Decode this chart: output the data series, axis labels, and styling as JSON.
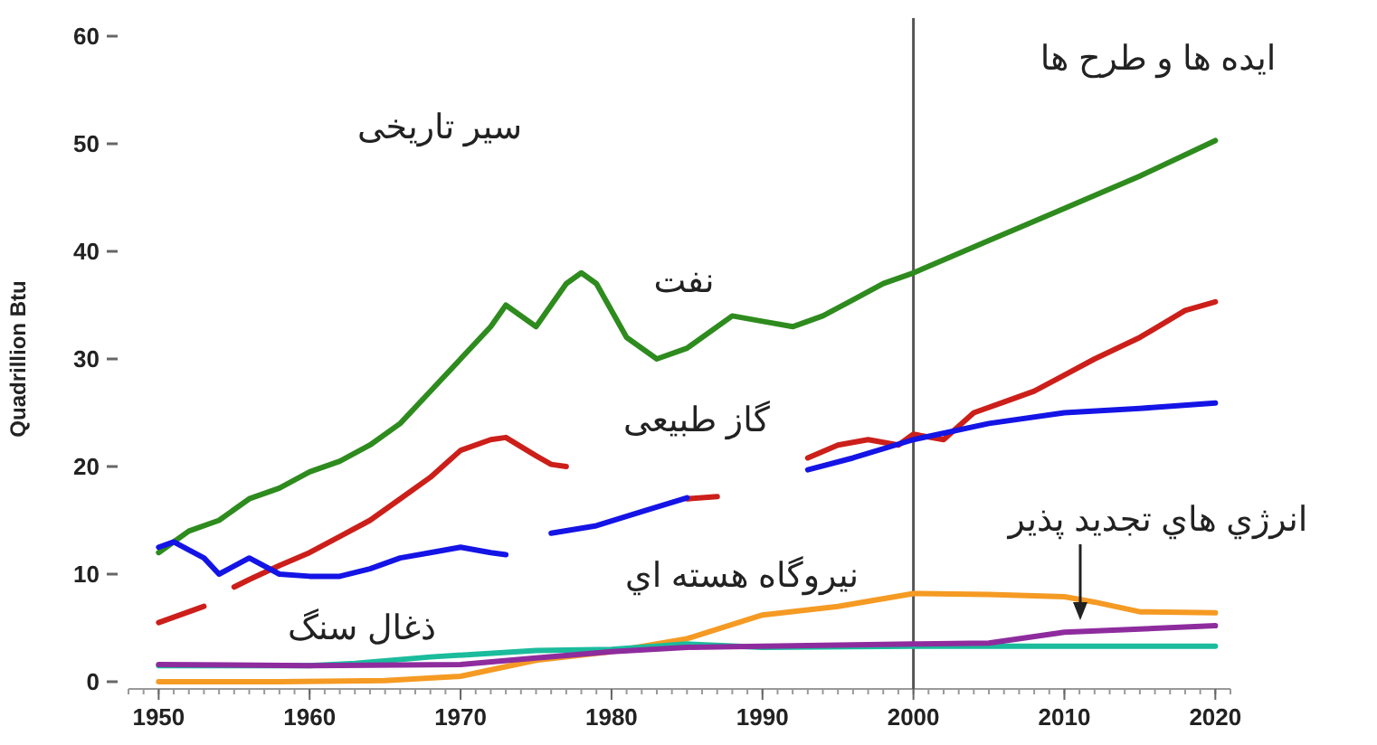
{
  "chart_data": {
    "type": "line",
    "ylabel": "Quadrillion Btu",
    "xlim": [
      1948,
      2021
    ],
    "xticks": [
      1950,
      1960,
      1970,
      1980,
      1990,
      2000,
      2010,
      2020
    ],
    "ylim": [
      0,
      60
    ],
    "yticks": [
      0,
      10,
      20,
      30,
      40,
      50,
      60
    ],
    "grid": false,
    "marker": "none",
    "line_style": "solid",
    "series": [
      {
        "color": "#2e8b1e",
        "x": [
          1950,
          1952,
          1954,
          1956,
          1958,
          1960,
          1962,
          1964,
          1966,
          1968,
          1970,
          1972,
          1973,
          1975,
          1977,
          1978,
          1979,
          1981,
          1983,
          1985,
          1988,
          1990,
          1992,
          1994,
          1996,
          1998,
          2000,
          2005,
          2010,
          2015,
          2020
        ],
        "values": [
          12,
          14,
          15,
          17,
          18,
          19.5,
          20.5,
          22,
          24,
          27,
          30,
          33,
          35,
          33,
          37,
          38,
          37,
          32,
          30,
          31,
          34,
          33.5,
          33,
          34,
          35.5,
          37,
          38,
          41,
          44,
          47,
          50.3
        ]
      },
      {
        "color": "#cc1f1a",
        "x": [
          1950,
          1952,
          1953,
          1954,
          1955,
          1956,
          1958,
          1960,
          1962,
          1964,
          1966,
          1968,
          1970,
          1972,
          1973,
          1975,
          1976,
          1977,
          1979,
          1985,
          1987,
          1990,
          1993,
          1995,
          1997,
          1999,
          2000,
          2002,
          2004,
          2006,
          2008,
          2010,
          2012,
          2015,
          2018,
          2020
        ],
        "values": [
          5.5,
          6.5,
          7,
          null,
          8.8,
          9.5,
          10.8,
          12,
          13.5,
          15,
          17,
          19,
          21.5,
          22.5,
          22.7,
          21,
          20.2,
          20,
          null,
          17,
          17.2,
          null,
          20.8,
          22,
          22.5,
          22,
          23,
          22.5,
          25,
          26,
          27,
          28.5,
          30,
          32,
          34.5,
          35.3
        ]
      },
      {
        "color": "#1414e6",
        "x": [
          1950,
          1951,
          1953,
          1954,
          1956,
          1958,
          1960,
          1962,
          1964,
          1966,
          1968,
          1970,
          1972,
          1973,
          1975,
          1976,
          1979,
          1982,
          1985,
          1988,
          1993,
          1996,
          2000,
          2005,
          2010,
          2015,
          2020
        ],
        "values": [
          12.5,
          13,
          11.5,
          10,
          11.5,
          10,
          9.8,
          9.8,
          10.5,
          11.5,
          12,
          12.5,
          12,
          11.8,
          null,
          13.8,
          14.5,
          15.8,
          17.1,
          null,
          19.7,
          20.8,
          22.5,
          24,
          25,
          25.4,
          25.9
        ]
      },
      {
        "color": "#f59a23",
        "x": [
          1950,
          1958,
          1965,
          1970,
          1975,
          1980,
          1985,
          1990,
          1995,
          2000,
          2005,
          2010,
          2012,
          2015,
          2020
        ],
        "values": [
          0,
          0,
          0.1,
          0.5,
          2,
          2.8,
          4,
          6.2,
          7,
          8.2,
          8.1,
          7.9,
          7.4,
          6.5,
          6.4
        ]
      },
      {
        "color": "#1abc9c",
        "x": [
          1950,
          1960,
          1963,
          1968,
          1975,
          1980,
          1985,
          1990,
          2000,
          2010,
          2020
        ],
        "values": [
          1.5,
          1.5,
          1.7,
          2.3,
          2.9,
          3,
          3.5,
          3.2,
          3.3,
          3.3,
          3.3
        ]
      },
      {
        "color": "#8e2c9e",
        "x": [
          1950,
          1960,
          1970,
          1975,
          1980,
          1985,
          1990,
          1995,
          2000,
          2005,
          2010,
          2015,
          2020
        ],
        "values": [
          1.6,
          1.5,
          1.6,
          2.2,
          2.8,
          3.2,
          3.3,
          3.4,
          3.5,
          3.6,
          4.6,
          4.9,
          5.2
        ]
      }
    ],
    "ref_lines": [
      {
        "axis": "x",
        "value": 2000,
        "color": "#555555"
      }
    ],
    "annotations": [
      "سیر تاریخی",
      "ایده ها و طرح ها",
      "نفت",
      "گاز طبیعی",
      "نیروگاه هسته اي",
      "ذغال سنگ",
      "انرژي هاي تجدید پذیر"
    ]
  }
}
